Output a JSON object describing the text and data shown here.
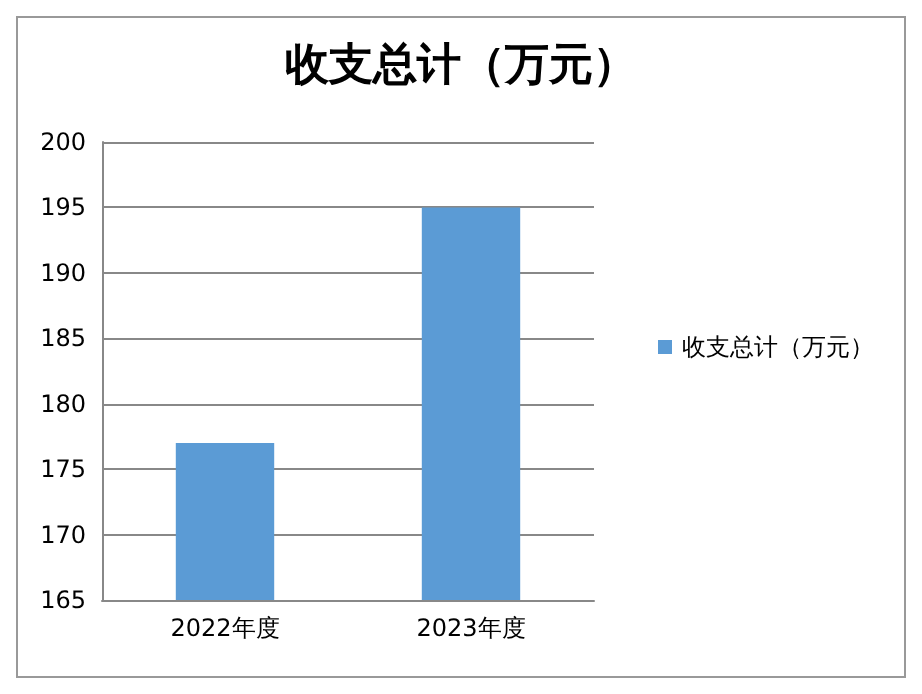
{
  "chart_data": {
    "type": "bar",
    "title": "收支总计（万元）",
    "categories": [
      "2022年度",
      "2023年度"
    ],
    "series": [
      {
        "name": "收支总计（万元）",
        "color": "#5b9bd5",
        "values": [
          177,
          195
        ]
      }
    ],
    "ylim": [
      165,
      200
    ],
    "yticks": [
      165,
      170,
      175,
      180,
      185,
      190,
      195,
      200
    ],
    "grid": "y",
    "legend": "right"
  }
}
